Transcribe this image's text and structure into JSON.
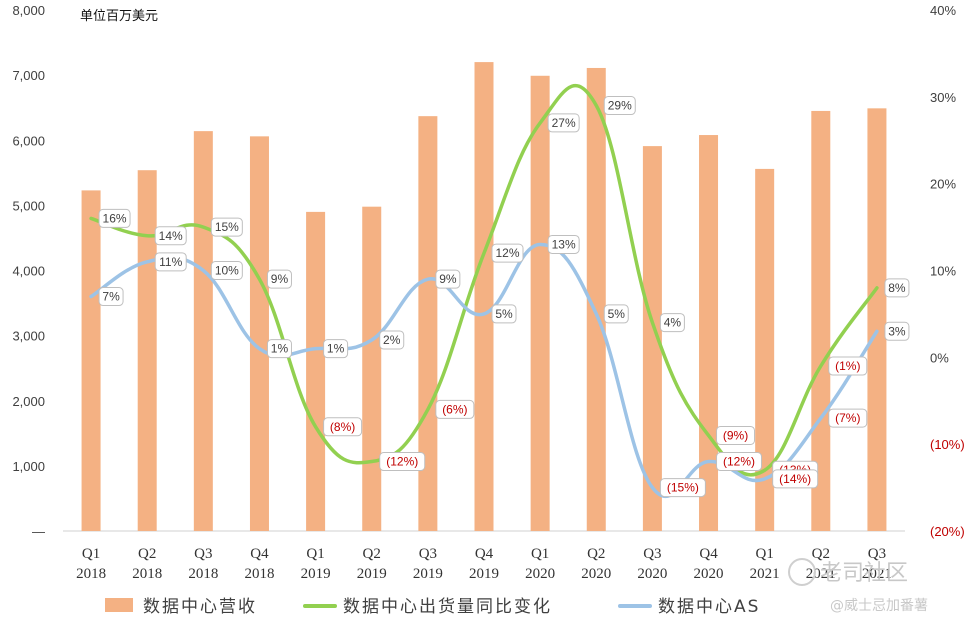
{
  "chart_data": {
    "type": "bar+line",
    "unit_label": "单位百万美元",
    "categories": [
      [
        "Q1",
        "2018"
      ],
      [
        "Q2",
        "2018"
      ],
      [
        "Q3",
        "2018"
      ],
      [
        "Q4",
        "2018"
      ],
      [
        "Q1",
        "2019"
      ],
      [
        "Q2",
        "2019"
      ],
      [
        "Q3",
        "2019"
      ],
      [
        "Q4",
        "2019"
      ],
      [
        "Q1",
        "2020"
      ],
      [
        "Q2",
        "2020"
      ],
      [
        "Q3",
        "2020"
      ],
      [
        "Q4",
        "2020"
      ],
      [
        "Q1",
        "2021"
      ],
      [
        "Q2",
        "2021"
      ],
      [
        "Q3",
        "2021"
      ]
    ],
    "y_left": {
      "min": 0,
      "max": 8000,
      "ticks": [
        "—",
        "1,000",
        "2,000",
        "3,000",
        "4,000",
        "5,000",
        "6,000",
        "7,000",
        "8,000"
      ]
    },
    "y_right": {
      "min": -20,
      "max": 40,
      "ticks": [
        "(20%)",
        "(10%)",
        "0%",
        "10%",
        "20%",
        "30%",
        "40%"
      ]
    },
    "series": [
      {
        "name": "数据中心营收",
        "kind": "bar",
        "color": "#F4B183",
        "values": [
          5230,
          5540,
          6140,
          6060,
          4900,
          4980,
          6370,
          7200,
          6990,
          7110,
          5910,
          6080,
          5560,
          6450,
          6490
        ]
      },
      {
        "name": "数据中心出货量同比变化",
        "kind": "line",
        "color": "#92D050",
        "values": [
          16,
          14,
          15,
          9,
          -8,
          -12,
          -6,
          12,
          27,
          29,
          4,
          -9,
          -13,
          -1,
          8
        ],
        "labels": [
          "16%",
          "14%",
          "15%",
          "9%",
          "(8%)",
          "(12%)",
          "(6%)",
          "12%",
          "27%",
          "29%",
          "4%",
          "(9%)",
          "(13%)",
          "(1%)",
          "8%"
        ]
      },
      {
        "name": "数据中心AS",
        "kind": "line",
        "color": "#9DC3E6",
        "values": [
          7,
          11,
          10,
          1,
          1,
          2,
          9,
          5,
          13,
          5,
          -15,
          -12,
          -14,
          -7,
          3
        ],
        "labels": [
          "7%",
          "11%",
          "10%",
          "1%",
          "1%",
          "2%",
          "9%",
          "5%",
          "13%",
          "5%",
          "(15%)",
          "(12%)",
          "(14%)",
          "(7%)",
          "3%"
        ]
      }
    ],
    "legend": {
      "position": "bottom"
    }
  },
  "watermark": {
    "line1": "老司社区",
    "line2": "@威士忌加番薯"
  }
}
